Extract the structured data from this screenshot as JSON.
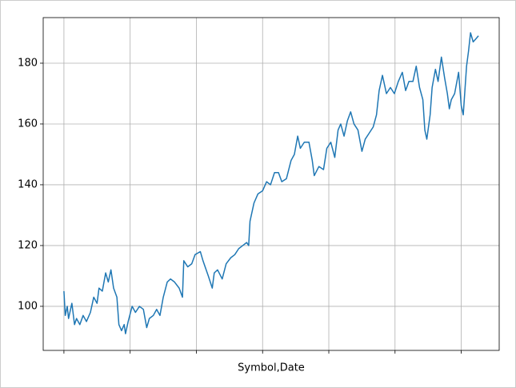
{
  "chart_data": {
    "type": "line",
    "xlabel": "Symbol,Date",
    "x": [
      0,
      2,
      5,
      7,
      12,
      16,
      19,
      24,
      29,
      34,
      40,
      45,
      50,
      53,
      58,
      63,
      67,
      71,
      75,
      80,
      83,
      87,
      91,
      93,
      97,
      103,
      108,
      114,
      120,
      125,
      129,
      135,
      140,
      145,
      150,
      156,
      161,
      167,
      174,
      179,
      181,
      187,
      193,
      198,
      206,
      210,
      218,
      224,
      227,
      232,
      239,
      245,
      252,
      258,
      264,
      270,
      276,
      279,
      281,
      287,
      293,
      300,
      306,
      312,
      318,
      324,
      329,
      336,
      343,
      348,
      353,
      357,
      363,
      370,
      375,
      378,
      385,
      392,
      397,
      403,
      409,
      414,
      418,
      423,
      428,
      433,
      438,
      444,
      450,
      455,
      461,
      467,
      472,
      476,
      481,
      487,
      493,
      499,
      505,
      511,
      516,
      521,
      527,
      532,
      537,
      542,
      545,
      548,
      553,
      556,
      561,
      565,
      570,
      575,
      579,
      582,
      585,
      590,
      596,
      600,
      603,
      608,
      611,
      614,
      618,
      622,
      626
    ],
    "series": [
      {
        "color": "#1f77b4",
        "values": [
          105,
          97,
          100,
          96,
          101,
          94,
          96,
          94,
          97,
          95,
          98,
          103,
          101,
          106,
          105,
          111,
          108,
          112,
          106,
          103,
          94,
          92,
          94,
          91,
          95,
          100,
          98,
          100,
          99,
          93,
          96,
          97,
          99,
          97,
          103,
          108,
          109,
          108,
          106,
          103,
          115,
          113,
          114,
          117,
          118,
          115,
          110,
          106,
          111,
          112,
          109,
          114,
          116,
          117,
          119,
          120,
          121,
          120,
          128,
          134,
          137,
          138,
          141,
          140,
          144,
          144,
          141,
          142,
          148,
          150,
          156,
          152,
          154,
          154,
          148,
          143,
          146,
          145,
          152,
          154,
          149,
          158,
          160,
          156,
          161,
          164,
          160,
          158,
          151,
          155,
          157,
          159,
          163,
          171,
          176,
          170,
          172,
          170,
          174,
          177,
          171,
          174,
          174,
          179,
          172,
          168,
          158,
          155,
          163,
          172,
          178,
          174,
          182,
          175,
          170,
          165,
          168,
          170,
          177,
          166,
          163,
          179,
          184,
          190,
          187,
          188,
          189
        ]
      }
    ],
    "xlim": [
      -31.3,
      657.3
    ],
    "xticks": [
      0,
      100,
      200,
      300,
      400,
      500,
      600
    ],
    "ylim": [
      85.5,
      195
    ],
    "yticks": [
      100,
      120,
      140,
      160,
      180
    ],
    "grid": true
  }
}
